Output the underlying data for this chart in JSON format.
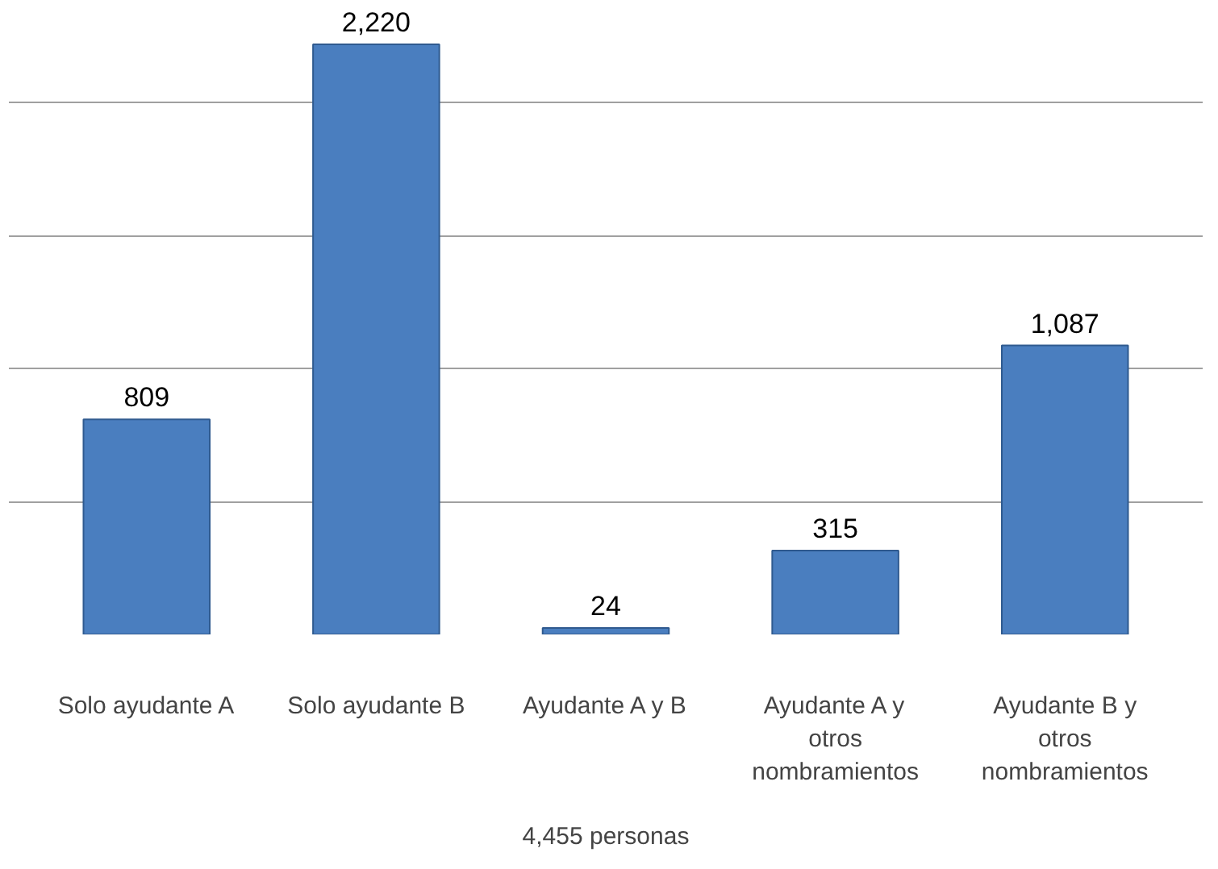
{
  "chart_data": {
    "type": "bar",
    "xlabel": "4,455 personas",
    "categories": [
      "Solo ayudante A",
      "Solo ayudante B",
      "Ayudante A y B",
      "Ayudante A y\notros\nnombramientos",
      "Ayudante B y\notros\nnombramientos"
    ],
    "values": [
      809,
      2220,
      24,
      315,
      1087
    ],
    "color": "#4a7ebf",
    "value_labels": [
      "809",
      "2,220",
      "24",
      "315",
      "1,087"
    ],
    "yticks": [
      {
        "value": 500,
        "label": null
      },
      {
        "value": 1000,
        "label": null
      },
      {
        "value": 1500,
        "label": null
      },
      {
        "value": 2000,
        "label": null
      }
    ],
    "tick_labels": "x",
    "grid": "y"
  }
}
